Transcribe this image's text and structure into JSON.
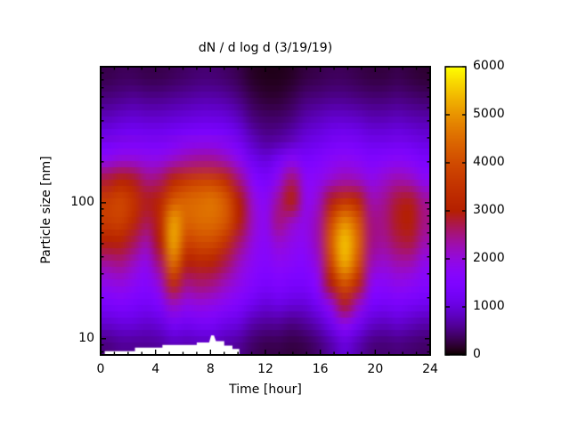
{
  "figure": {
    "title": "dN / d log d (3/19/19)",
    "x_axis": {
      "label": "Time [hour]",
      "min": 0,
      "max": 24,
      "major_ticks": [
        0,
        4,
        8,
        12,
        16,
        20,
        24
      ],
      "minor_tick_step": 1
    },
    "y_axis": {
      "label": "Particle size [nm]",
      "scale": "log",
      "min": 7.6,
      "max": 1000,
      "major_ticks": [
        10,
        100
      ],
      "minor_ticks": [
        8,
        9,
        20,
        30,
        40,
        50,
        60,
        70,
        80,
        90,
        200,
        300,
        400,
        500,
        600,
        700,
        800,
        900
      ]
    },
    "colorbar": {
      "min": 0,
      "max": 6000,
      "ticks": [
        0,
        1000,
        2000,
        3000,
        4000,
        5000,
        6000
      ],
      "palette_name": "gnuplot black-violet-red-yellow (rgbformulae 7,5,15)",
      "palette_stops": {
        "0": "#000000",
        "1000": "#6801dd",
        "2000": "#9309dd",
        "3000": "#b42000",
        "4000": "#d04c00",
        "5000": "#e99300",
        "6000": "#ffff00"
      }
    }
  },
  "chart_data": {
    "type": "heatmap",
    "title": "dN / d log d (3/19/19)",
    "xlabel": "Time [hour]",
    "ylabel": "Particle size [nm]",
    "legend_position": "right colorbar",
    "grid": "off",
    "xlim": [
      0,
      24
    ],
    "ylim_nm": [
      7.6,
      1000
    ],
    "value_range": [
      0,
      6000
    ],
    "x_hours": [
      0,
      1,
      2,
      3,
      4,
      5,
      6,
      7,
      8,
      9,
      10,
      11,
      12,
      13,
      14,
      15,
      16,
      17,
      18,
      19,
      20,
      21,
      22,
      23,
      24
    ],
    "y_sizes_nm": [
      1000,
      700,
      480,
      330,
      230,
      160,
      110,
      75,
      52,
      36,
      25,
      17,
      12,
      8
    ],
    "values_grid_rows_top_to_bottom": [
      [
        300,
        350,
        350,
        300,
        300,
        350,
        400,
        450,
        450,
        400,
        300,
        150,
        100,
        100,
        150,
        250,
        300,
        350,
        350,
        300,
        250,
        250,
        300,
        250,
        200
      ],
      [
        500,
        550,
        600,
        550,
        550,
        600,
        650,
        700,
        700,
        650,
        500,
        300,
        200,
        200,
        300,
        450,
        500,
        550,
        550,
        500,
        450,
        450,
        500,
        450,
        400
      ],
      [
        800,
        900,
        950,
        900,
        900,
        950,
        1000,
        1050,
        1050,
        1000,
        800,
        500,
        400,
        400,
        500,
        700,
        800,
        900,
        900,
        850,
        750,
        750,
        800,
        750,
        700
      ],
      [
        1200,
        1300,
        1350,
        1300,
        1300,
        1400,
        1500,
        1550,
        1550,
        1450,
        1200,
        800,
        600,
        650,
        800,
        1000,
        1100,
        1250,
        1300,
        1250,
        1100,
        1100,
        1150,
        1100,
        1000
      ],
      [
        1800,
        2000,
        2000,
        1900,
        1900,
        2100,
        2300,
        2400,
        2400,
        2200,
        1800,
        1200,
        1000,
        1300,
        1700,
        1400,
        1500,
        1700,
        1800,
        1700,
        1500,
        1600,
        1700,
        1600,
        1400
      ],
      [
        2800,
        3100,
        2900,
        2500,
        2600,
        3200,
        3600,
        3800,
        3800,
        3400,
        2500,
        1700,
        1400,
        1900,
        2600,
        1800,
        1800,
        2100,
        2300,
        2200,
        1900,
        2100,
        2300,
        2200,
        1800
      ],
      [
        3700,
        3900,
        3500,
        2900,
        3200,
        4200,
        4400,
        4500,
        4600,
        4200,
        3000,
        2100,
        1700,
        2400,
        3000,
        1900,
        2100,
        2900,
        3500,
        3200,
        2300,
        2400,
        2800,
        2900,
        2400
      ],
      [
        3700,
        3800,
        3300,
        2700,
        3300,
        5100,
        4400,
        4500,
        4500,
        4200,
        3100,
        2200,
        1800,
        2500,
        2200,
        1900,
        2300,
        3900,
        4900,
        4200,
        2500,
        2500,
        2900,
        3000,
        2500
      ],
      [
        3000,
        3100,
        2700,
        2300,
        3000,
        5200,
        3900,
        4000,
        4000,
        3500,
        2600,
        2000,
        1700,
        2100,
        1900,
        1800,
        2300,
        4300,
        5500,
        4500,
        2500,
        2400,
        2700,
        2800,
        2300
      ],
      [
        2400,
        2500,
        2200,
        1900,
        2600,
        4600,
        3100,
        3200,
        3100,
        2700,
        2200,
        1800,
        1600,
        1800,
        1700,
        1600,
        2100,
        3900,
        5300,
        4200,
        2300,
        2100,
        2300,
        2300,
        1900
      ],
      [
        1900,
        2000,
        1800,
        1600,
        2100,
        3400,
        2500,
        2600,
        2500,
        2200,
        1900,
        1600,
        1400,
        1500,
        1400,
        1400,
        1800,
        3000,
        4200,
        3300,
        1900,
        1700,
        1900,
        1800,
        1600
      ],
      [
        1400,
        1500,
        1400,
        1300,
        1500,
        2200,
        1900,
        2000,
        1900,
        1700,
        1500,
        1200,
        1000,
        1100,
        1000,
        1000,
        1300,
        2000,
        2900,
        2200,
        1400,
        1300,
        1400,
        1300,
        1200
      ],
      [
        900,
        1000,
        1000,
        900,
        1000,
        1300,
        1200,
        1300,
        1300,
        1100,
        1000,
        700,
        600,
        600,
        500,
        600,
        800,
        1200,
        1800,
        1300,
        900,
        800,
        900,
        800,
        700
      ],
      [
        500,
        600,
        600,
        600,
        650,
        800,
        750,
        800,
        800,
        700,
        600,
        400,
        300,
        300,
        250,
        300,
        450,
        700,
        1000,
        750,
        500,
        450,
        500,
        450,
        400
      ]
    ],
    "no_data_region_polygon_hour_nm": [
      [
        0.3,
        7.6
      ],
      [
        0.3,
        8.1
      ],
      [
        2.5,
        8.1
      ],
      [
        2.5,
        8.6
      ],
      [
        4.5,
        8.6
      ],
      [
        4.5,
        9.0
      ],
      [
        7.0,
        9.0
      ],
      [
        7.0,
        9.4
      ],
      [
        7.9,
        9.4
      ],
      [
        8.05,
        10.6
      ],
      [
        8.25,
        10.6
      ],
      [
        8.4,
        9.6
      ],
      [
        9.0,
        9.6
      ],
      [
        9.0,
        8.9
      ],
      [
        9.6,
        8.9
      ],
      [
        9.6,
        8.4
      ],
      [
        10.1,
        8.4
      ],
      [
        10.1,
        7.6
      ]
    ]
  }
}
